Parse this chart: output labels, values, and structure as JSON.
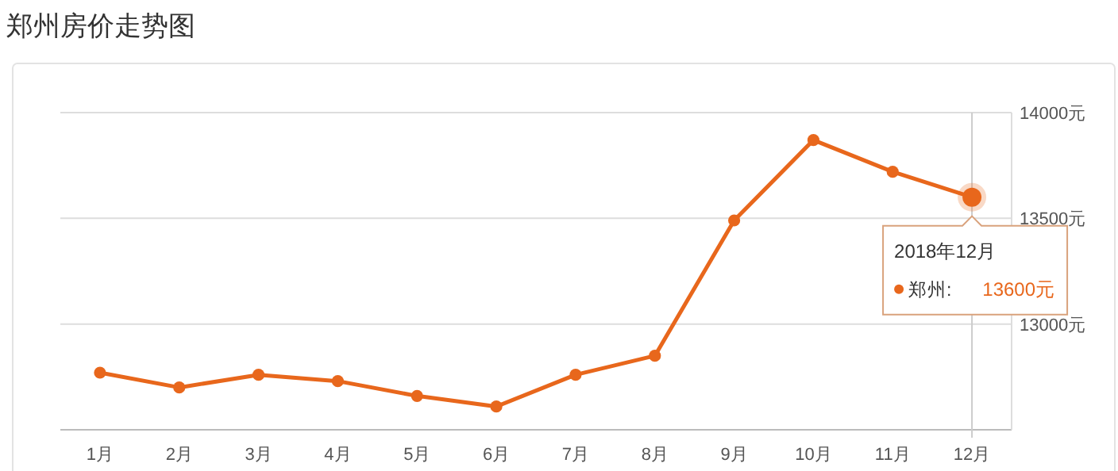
{
  "chart_data": {
    "type": "line",
    "title": "郑州房价走势图",
    "categories": [
      "1月",
      "2月",
      "3月",
      "4月",
      "5月",
      "6月",
      "7月",
      "8月",
      "9月",
      "10月",
      "11月",
      "12月"
    ],
    "series": [
      {
        "name": "郑州:",
        "color": "#e8671c",
        "values": [
          12770,
          12700,
          12760,
          12730,
          12660,
          12610,
          12760,
          12850,
          13490,
          13870,
          13720,
          13600
        ]
      }
    ],
    "ylim": [
      12500,
      14000
    ],
    "yticks": [
      {
        "value": 13000,
        "label": "13000元"
      },
      {
        "value": 13500,
        "label": "13500元"
      },
      {
        "value": 14000,
        "label": "14000元"
      }
    ],
    "grid": "y",
    "marker": "circle",
    "line_style": "solid",
    "ref_lines": [
      {
        "axis": "x",
        "value": "12月",
        "color": "#cccccc"
      }
    ],
    "annotations": [
      {
        "text": "2018年12月",
        "x": "12月",
        "y": 13600
      },
      "13600元"
    ]
  }
}
